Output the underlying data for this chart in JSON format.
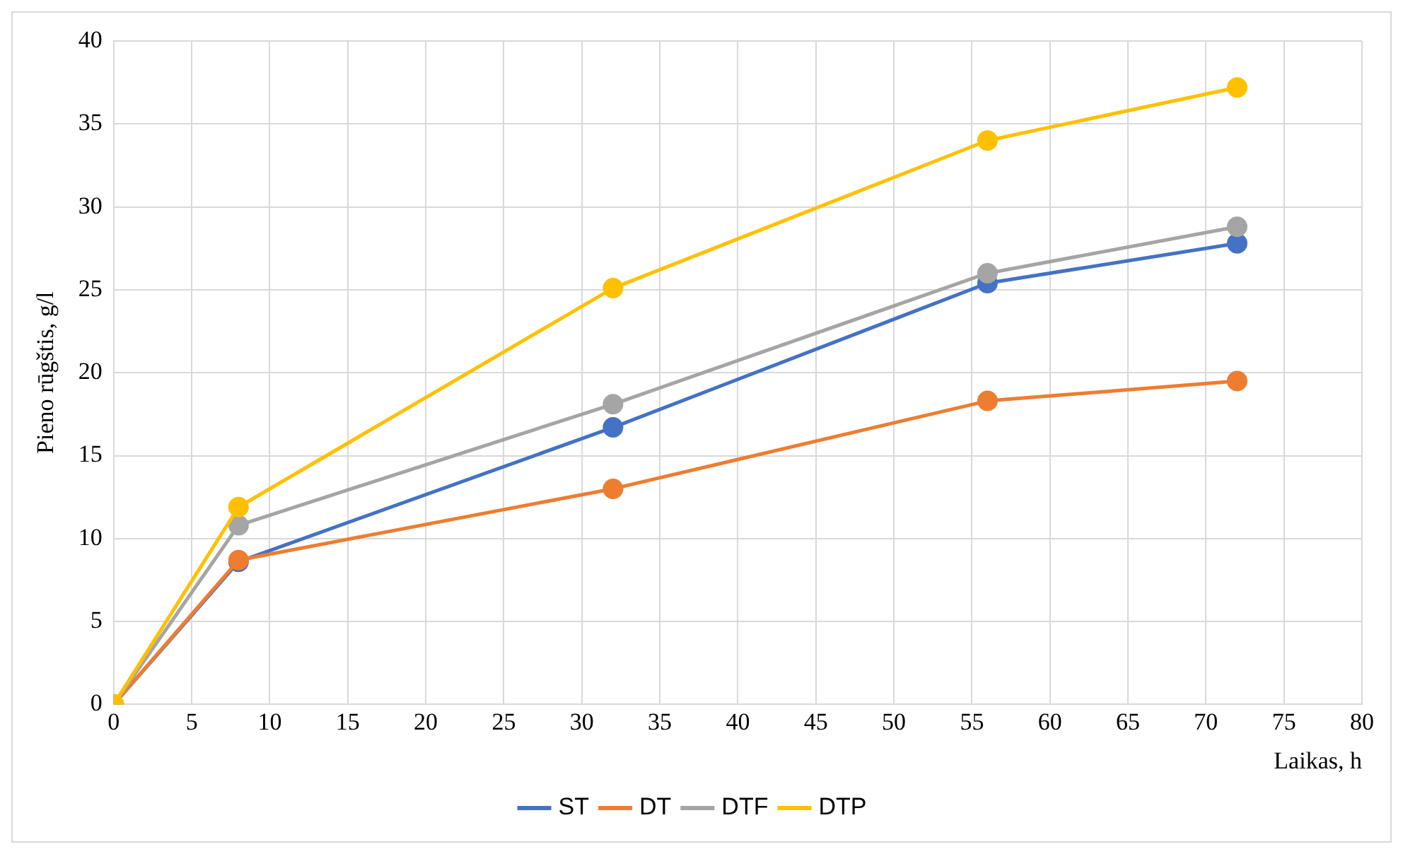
{
  "chart_data": {
    "type": "line",
    "xlabel": "Laikas, h",
    "ylabel": "Pieno rūgštis, g/l",
    "x": [
      0,
      8,
      32,
      56,
      72
    ],
    "series": [
      {
        "name": "ST",
        "color": "#4472c4",
        "values": [
          0,
          8.6,
          16.7,
          25.4,
          27.8
        ]
      },
      {
        "name": "DT",
        "color": "#ed7d31",
        "values": [
          0,
          8.7,
          13.0,
          18.3,
          19.5
        ]
      },
      {
        "name": "DTF",
        "color": "#a5a5a5",
        "values": [
          0,
          10.8,
          18.1,
          26.0,
          28.8
        ]
      },
      {
        "name": "DTP",
        "color": "#ffc000",
        "values": [
          0,
          11.9,
          25.1,
          34.0,
          37.2
        ]
      }
    ],
    "xlim": [
      0,
      80
    ],
    "xticks": [
      0,
      5,
      10,
      15,
      20,
      25,
      30,
      35,
      40,
      45,
      50,
      55,
      60,
      65,
      70,
      75,
      80
    ],
    "ylim": [
      0,
      40
    ],
    "yticks": [
      0,
      5,
      10,
      15,
      20,
      25,
      30,
      35,
      40
    ],
    "grid": true,
    "legend": "bottom",
    "marker": "circle",
    "line_style": "solid"
  }
}
